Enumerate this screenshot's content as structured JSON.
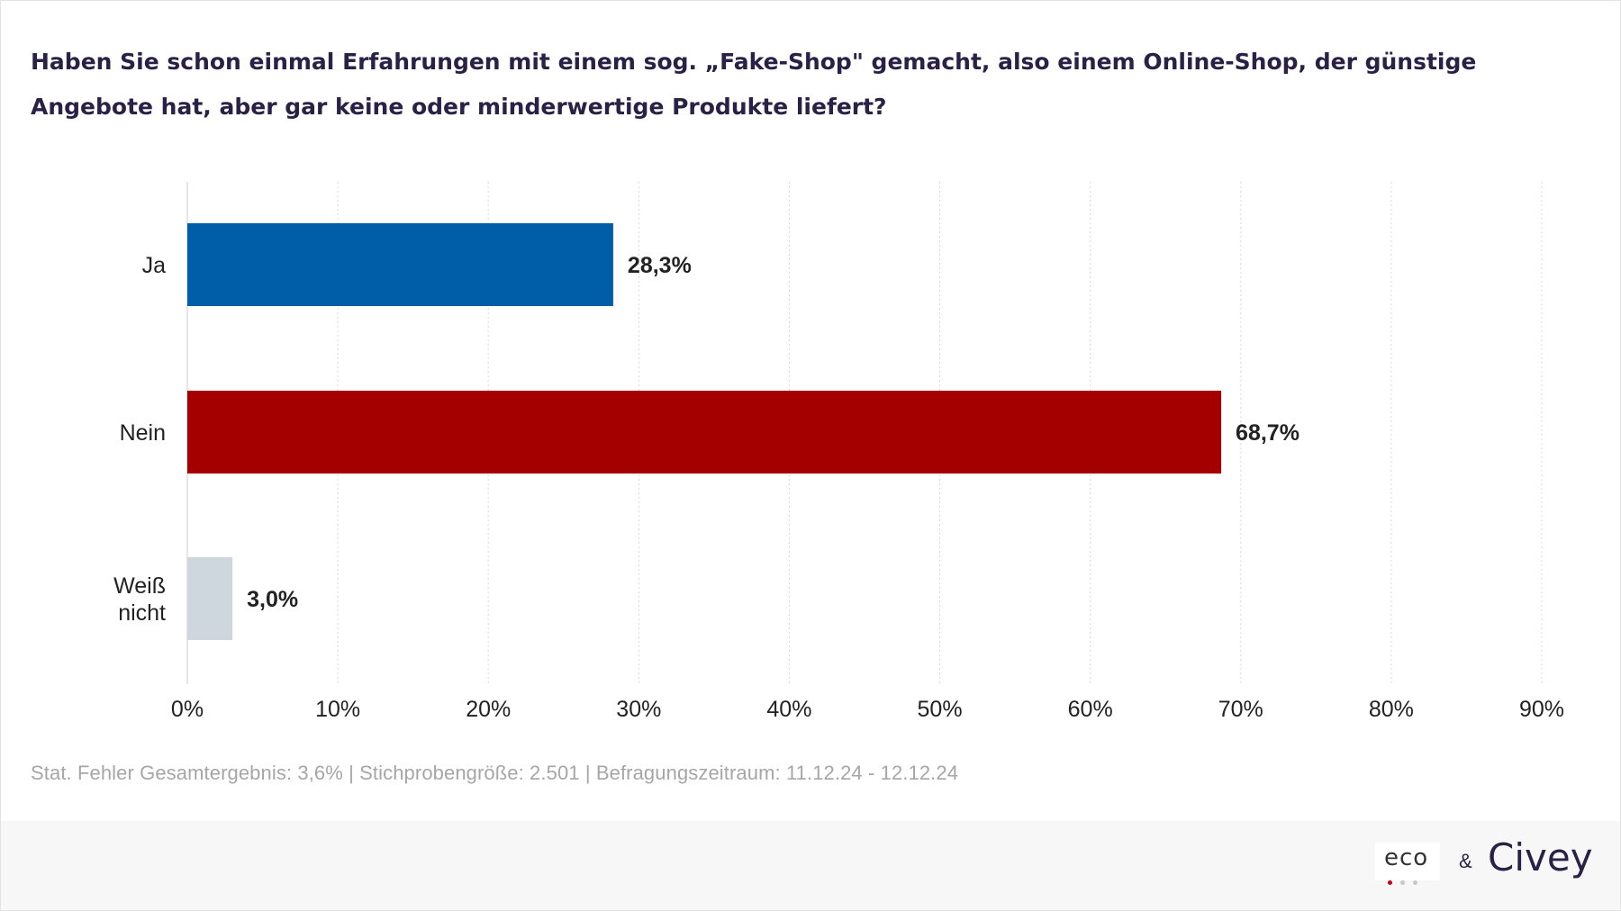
{
  "title": "Haben Sie schon einmal Erfahrungen mit einem sog. „Fake-Shop\" gemacht, also einem Online-Shop, der günstige Angebote hat, aber gar keine oder minderwertige Produkte liefert?",
  "footnote": "Stat. Fehler Gesamtergebnis: 3,6% | Stichprobengröße: 2.501 | Befragungszeitraum: 11.12.24 - 12.12.24",
  "footer": {
    "logo_eco": "eco",
    "ampersand": "&",
    "logo_civey": "Civey"
  },
  "chart_data": {
    "type": "bar",
    "orientation": "horizontal",
    "categories": [
      [
        "Ja"
      ],
      [
        "Nein"
      ],
      [
        "Weiß",
        "nicht"
      ]
    ],
    "values": [
      28.3,
      68.7,
      3.0
    ],
    "value_labels": [
      "28,3%",
      "68,7%",
      "3,0%"
    ],
    "colors": [
      "#005ea8",
      "#a50000",
      "#cfd7de"
    ],
    "xlim": [
      0,
      90
    ],
    "xticks": [
      0,
      10,
      20,
      30,
      40,
      50,
      60,
      70,
      80,
      90
    ],
    "xtick_labels": [
      "0%",
      "10%",
      "20%",
      "30%",
      "40%",
      "50%",
      "60%",
      "70%",
      "80%",
      "90%"
    ],
    "grid": "vertical-dotted",
    "legend": "none"
  }
}
